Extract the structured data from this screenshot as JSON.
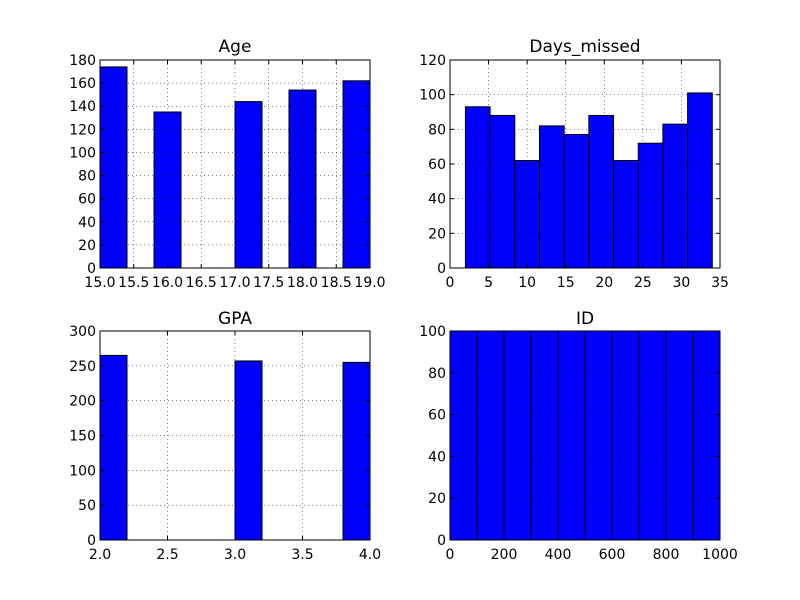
{
  "chart_data": [
    {
      "type": "bar",
      "title": "Age",
      "xlabel": "",
      "ylabel": "",
      "xlim": [
        15.0,
        19.0
      ],
      "ylim": [
        0,
        180
      ],
      "grid": true,
      "x_ticks": [
        15.0,
        15.5,
        16.0,
        16.5,
        17.0,
        17.5,
        18.0,
        18.5,
        19.0
      ],
      "x_tick_labels": [
        "15.0",
        "15.5",
        "16.0",
        "16.5",
        "17.0",
        "17.5",
        "18.0",
        "18.5",
        "19.0"
      ],
      "y_ticks": [
        0,
        20,
        40,
        60,
        80,
        100,
        120,
        140,
        160,
        180
      ],
      "y_tick_labels": [
        "0",
        "20",
        "40",
        "60",
        "80",
        "100",
        "120",
        "140",
        "160",
        "180"
      ],
      "bins": [
        {
          "start": 15.0,
          "end": 15.4,
          "count": 174
        },
        {
          "start": 15.4,
          "end": 15.8,
          "count": 0
        },
        {
          "start": 15.8,
          "end": 16.2,
          "count": 135
        },
        {
          "start": 16.2,
          "end": 16.6,
          "count": 0
        },
        {
          "start": 16.6,
          "end": 17.0,
          "count": 0
        },
        {
          "start": 17.0,
          "end": 17.4,
          "count": 144
        },
        {
          "start": 17.4,
          "end": 17.8,
          "count": 0
        },
        {
          "start": 17.8,
          "end": 18.2,
          "count": 154
        },
        {
          "start": 18.2,
          "end": 18.6,
          "count": 0
        },
        {
          "start": 18.6,
          "end": 19.0,
          "count": 162
        }
      ],
      "color": "#0000ff"
    },
    {
      "type": "bar",
      "title": "Days_missed",
      "xlabel": "",
      "ylabel": "",
      "xlim": [
        0,
        35
      ],
      "ylim": [
        0,
        120
      ],
      "grid": true,
      "x_ticks": [
        0,
        5,
        10,
        15,
        20,
        25,
        30,
        35
      ],
      "x_tick_labels": [
        "0",
        "5",
        "10",
        "15",
        "20",
        "25",
        "30",
        "35"
      ],
      "y_ticks": [
        0,
        20,
        40,
        60,
        80,
        100,
        120
      ],
      "y_tick_labels": [
        "0",
        "20",
        "40",
        "60",
        "80",
        "100",
        "120"
      ],
      "bins": [
        {
          "start": 2.0,
          "end": 5.2,
          "count": 93
        },
        {
          "start": 5.2,
          "end": 8.4,
          "count": 88
        },
        {
          "start": 8.4,
          "end": 11.6,
          "count": 62
        },
        {
          "start": 11.6,
          "end": 14.8,
          "count": 82
        },
        {
          "start": 14.8,
          "end": 18.0,
          "count": 77
        },
        {
          "start": 18.0,
          "end": 21.2,
          "count": 88
        },
        {
          "start": 21.2,
          "end": 24.4,
          "count": 62
        },
        {
          "start": 24.4,
          "end": 27.6,
          "count": 72
        },
        {
          "start": 27.6,
          "end": 30.8,
          "count": 83
        },
        {
          "start": 30.8,
          "end": 34.0,
          "count": 101
        }
      ],
      "color": "#0000ff"
    },
    {
      "type": "bar",
      "title": "GPA",
      "xlabel": "",
      "ylabel": "",
      "xlim": [
        2.0,
        4.0
      ],
      "ylim": [
        0,
        300
      ],
      "grid": true,
      "x_ticks": [
        2.0,
        2.5,
        3.0,
        3.5,
        4.0
      ],
      "x_tick_labels": [
        "2.0",
        "2.5",
        "3.0",
        "3.5",
        "4.0"
      ],
      "y_ticks": [
        0,
        50,
        100,
        150,
        200,
        250,
        300
      ],
      "y_tick_labels": [
        "0",
        "50",
        "100",
        "150",
        "200",
        "250",
        "300"
      ],
      "bins": [
        {
          "start": 2.0,
          "end": 2.2,
          "count": 265
        },
        {
          "start": 2.2,
          "end": 2.4,
          "count": 0
        },
        {
          "start": 2.4,
          "end": 2.6,
          "count": 0
        },
        {
          "start": 2.6,
          "end": 2.8,
          "count": 0
        },
        {
          "start": 2.8,
          "end": 3.0,
          "count": 0
        },
        {
          "start": 3.0,
          "end": 3.2,
          "count": 257
        },
        {
          "start": 3.2,
          "end": 3.4,
          "count": 0
        },
        {
          "start": 3.4,
          "end": 3.6,
          "count": 0
        },
        {
          "start": 3.6,
          "end": 3.8,
          "count": 0
        },
        {
          "start": 3.8,
          "end": 4.0,
          "count": 255
        }
      ],
      "color": "#0000ff"
    },
    {
      "type": "bar",
      "title": "ID",
      "xlabel": "",
      "ylabel": "",
      "xlim": [
        0,
        1000
      ],
      "ylim": [
        0,
        100
      ],
      "grid": true,
      "x_ticks": [
        0,
        200,
        400,
        600,
        800,
        1000
      ],
      "x_tick_labels": [
        "0",
        "200",
        "400",
        "600",
        "800",
        "1000"
      ],
      "y_ticks": [
        0,
        20,
        40,
        60,
        80,
        100
      ],
      "y_tick_labels": [
        "0",
        "20",
        "40",
        "60",
        "80",
        "100"
      ],
      "bins": [
        {
          "start": 0,
          "end": 100,
          "count": 100
        },
        {
          "start": 100,
          "end": 200,
          "count": 100
        },
        {
          "start": 200,
          "end": 300,
          "count": 100
        },
        {
          "start": 300,
          "end": 400,
          "count": 100
        },
        {
          "start": 400,
          "end": 500,
          "count": 100
        },
        {
          "start": 500,
          "end": 600,
          "count": 100
        },
        {
          "start": 600,
          "end": 700,
          "count": 100
        },
        {
          "start": 700,
          "end": 800,
          "count": 100
        },
        {
          "start": 800,
          "end": 900,
          "count": 100
        },
        {
          "start": 900,
          "end": 1000,
          "count": 100
        }
      ],
      "color": "#0000ff"
    }
  ]
}
